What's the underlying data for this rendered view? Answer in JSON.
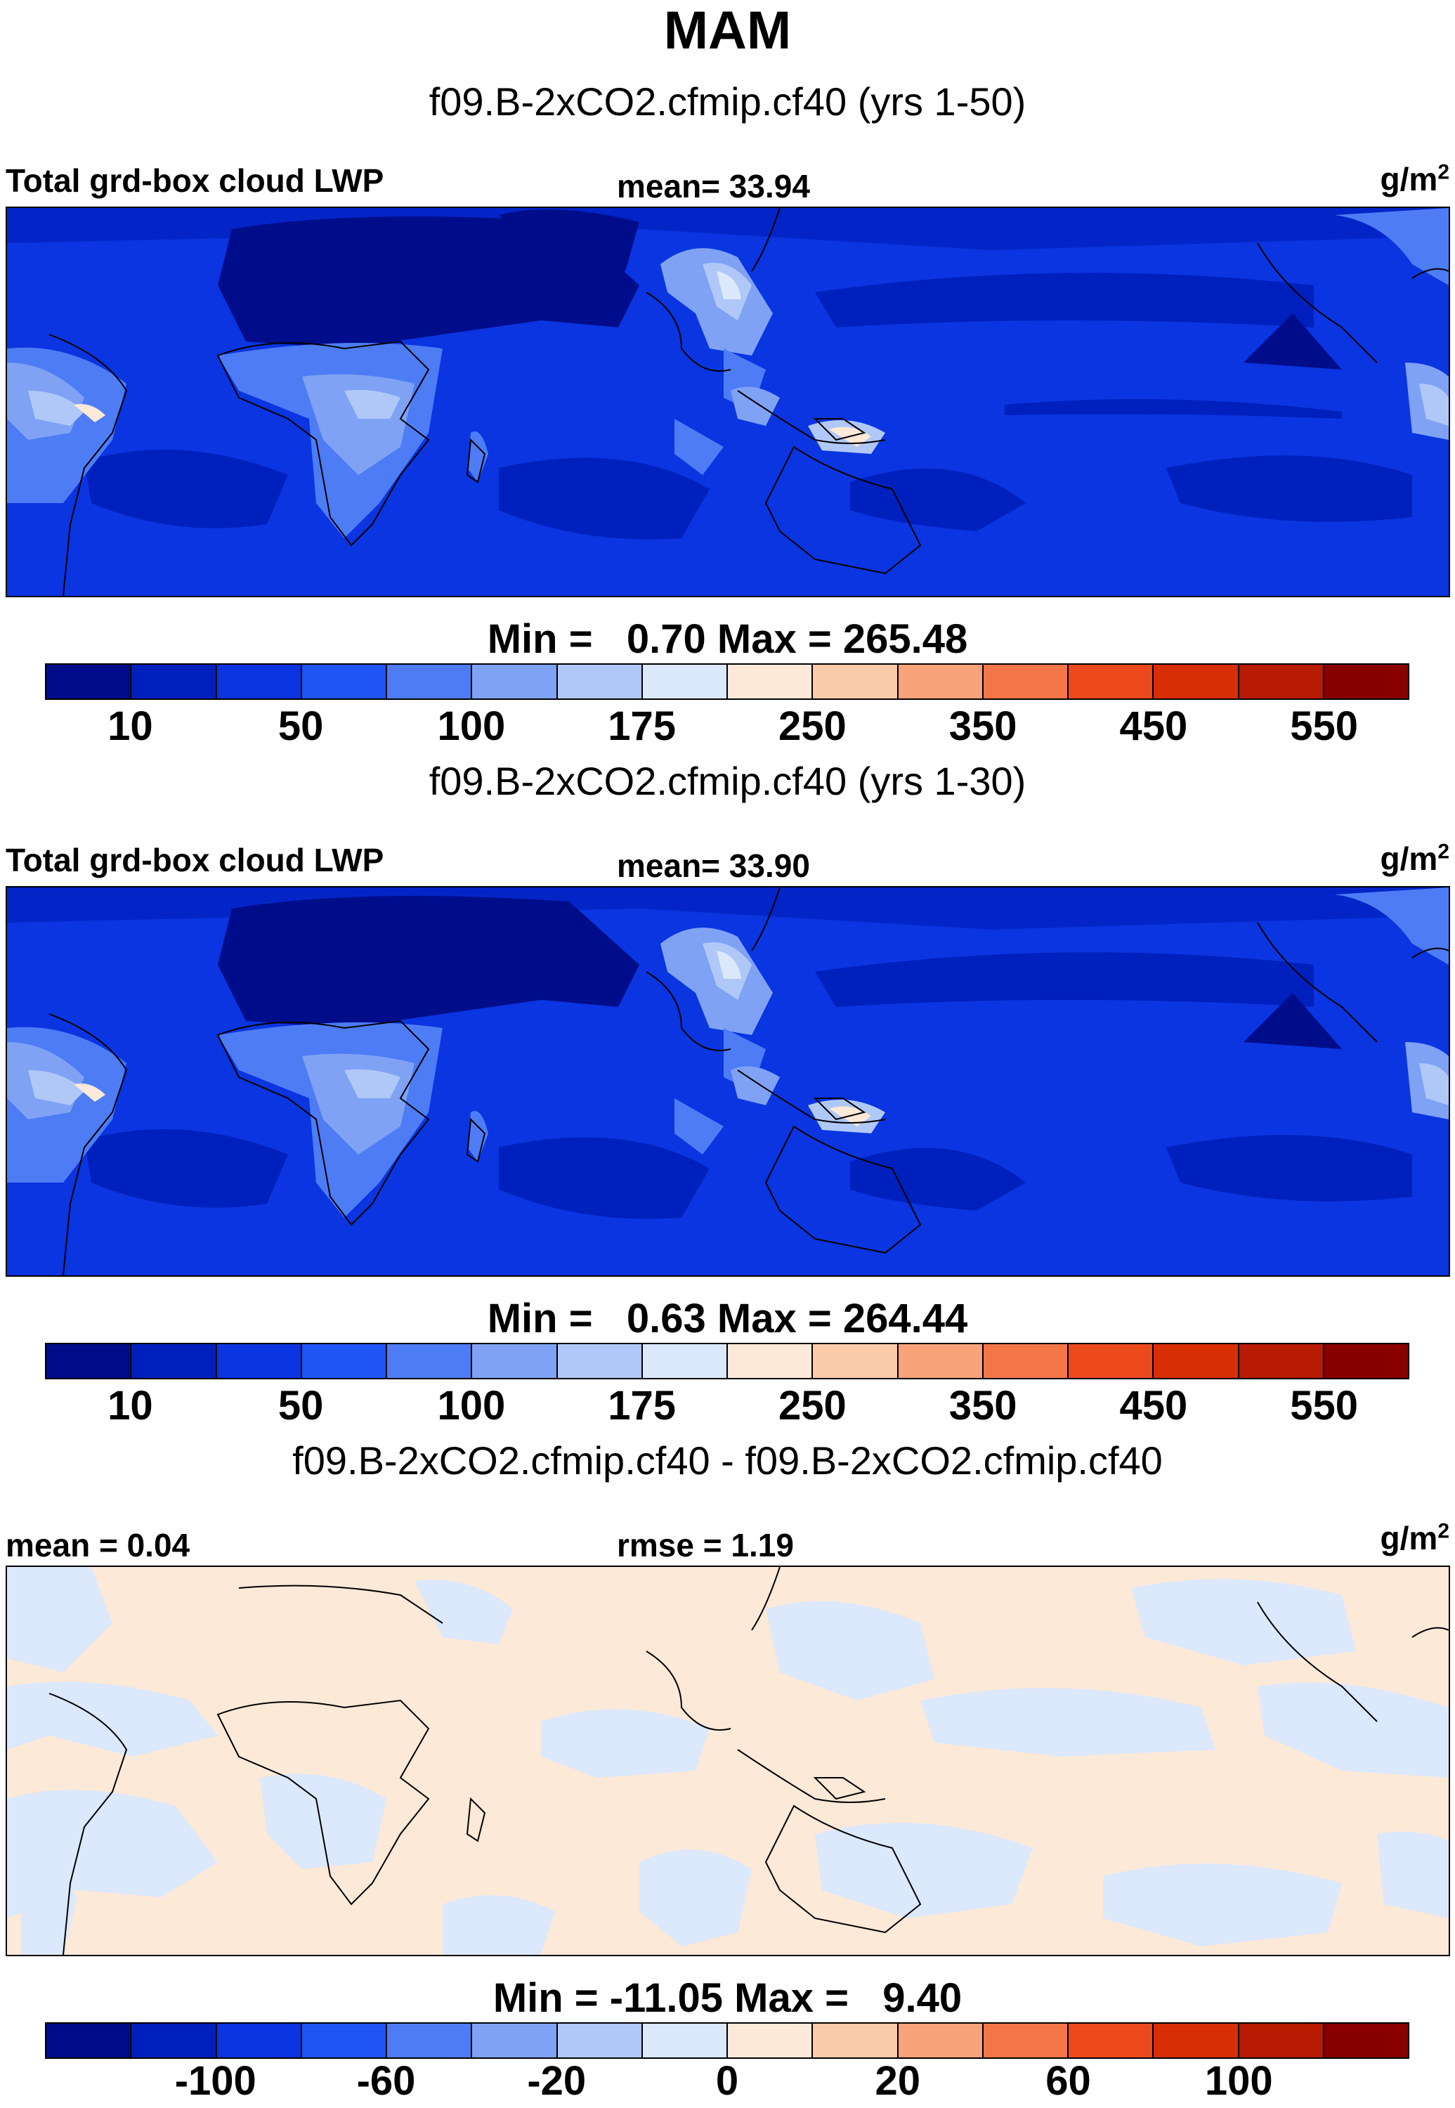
{
  "title": "MAM",
  "panels": [
    {
      "case_title": "f09.B-2xCO2.cfmip.cf40 (yrs 1-50)",
      "left_label": "Total grd-box cloud LWP",
      "mid_label": "mean=  33.94",
      "units": "g/m",
      "units_sup": "2",
      "minmax": "Min =   0.70 Max = 265.48",
      "colorbar_ticks": [
        "10",
        "50",
        "100",
        "175",
        "250",
        "350",
        "450",
        "550"
      ],
      "palette": [
        "#000d8a",
        "#0020bd",
        "#0a35e0",
        "#1f55f5",
        "#4d7cf5",
        "#7fa2f5",
        "#b0c8f8",
        "#dce8fb",
        "#fde9d8",
        "#fbcaa9",
        "#f8a37a",
        "#f47648",
        "#ec4a1c",
        "#d82e06",
        "#b71b02",
        "#8a0000"
      ]
    },
    {
      "case_title": "f09.B-2xCO2.cfmip.cf40 (yrs 1-30)",
      "left_label": "Total grd-box cloud LWP",
      "mid_label": "mean=  33.90",
      "units": "g/m",
      "units_sup": "2",
      "minmax": "Min =   0.63 Max = 264.44",
      "colorbar_ticks": [
        "10",
        "50",
        "100",
        "175",
        "250",
        "350",
        "450",
        "550"
      ],
      "palette": [
        "#000d8a",
        "#0020bd",
        "#0a35e0",
        "#1f55f5",
        "#4d7cf5",
        "#7fa2f5",
        "#b0c8f8",
        "#dce8fb",
        "#fde9d8",
        "#fbcaa9",
        "#f8a37a",
        "#f47648",
        "#ec4a1c",
        "#d82e06",
        "#b71b02",
        "#8a0000"
      ]
    },
    {
      "case_title": "f09.B-2xCO2.cfmip.cf40 - f09.B-2xCO2.cfmip.cf40",
      "left_label": "mean =   0.04",
      "mid_label": "rmse =   1.19",
      "units": "g/m",
      "units_sup": "2",
      "minmax": "Min = -11.05 Max =   9.40",
      "colorbar_ticks": [
        "-100",
        "-60",
        "-20",
        "0",
        "20",
        "60",
        "100"
      ],
      "palette": [
        "#000d8a",
        "#0020bd",
        "#0a35e0",
        "#1f55f5",
        "#4d7cf5",
        "#7fa2f5",
        "#b0c8f8",
        "#dce8fb",
        "#fde9d8",
        "#fbcaa9",
        "#f8a37a",
        "#f47648",
        "#ec4a1c",
        "#d82e06",
        "#b71b02",
        "#8a0000"
      ]
    }
  ]
}
